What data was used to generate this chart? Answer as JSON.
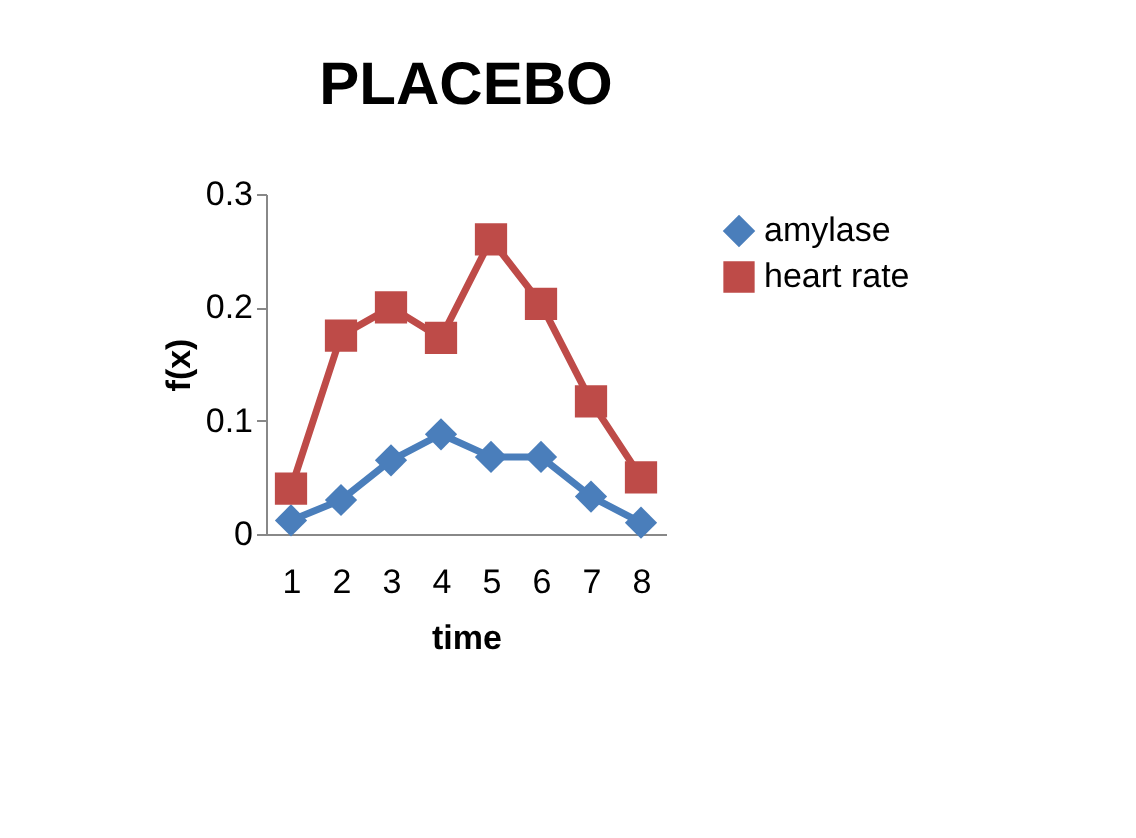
{
  "chart_data": {
    "type": "line",
    "title": "PLACEBO",
    "xlabel": "time",
    "ylabel": "f(x)",
    "categories": [
      "1",
      "2",
      "3",
      "4",
      "5",
      "6",
      "7",
      "8"
    ],
    "series": [
      {
        "name": "amylase",
        "color": "#4a7ebb",
        "marker": "diamond",
        "values": [
          0.012,
          0.03,
          0.065,
          0.088,
          0.068,
          0.068,
          0.033,
          0.01
        ]
      },
      {
        "name": "heart rate",
        "color": "#be4b48",
        "marker": "square",
        "values": [
          0.04,
          0.175,
          0.2,
          0.173,
          0.26,
          0.203,
          0.117,
          0.05
        ]
      }
    ],
    "ylim": [
      0,
      0.3
    ],
    "yticks": [
      0,
      0.1,
      0.2,
      0.3
    ],
    "grid": false,
    "legend": "right",
    "line_style": "solid"
  }
}
